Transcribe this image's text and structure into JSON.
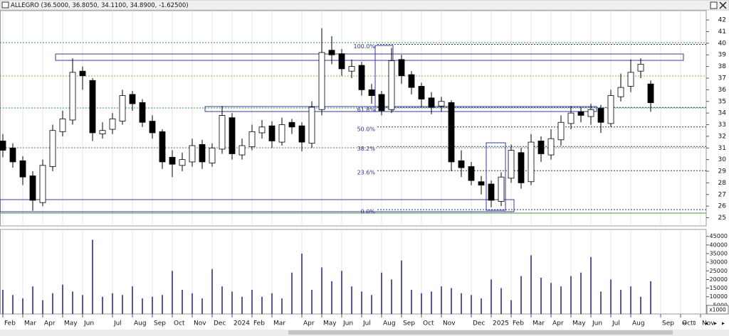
{
  "chart_data": {
    "type": "candlestick",
    "title": "ALLEGRO (36.5000, 36.8050, 34.1100, 34.8900, -1.62500)",
    "categories": [
      "Feb",
      null,
      "Mar",
      null,
      "Apr",
      null,
      "May",
      null,
      "Jun",
      null,
      null,
      "Jul",
      null,
      "Aug",
      null,
      "Sep",
      null,
      "Oct",
      null,
      "Nov",
      null,
      "Dec",
      null,
      "2024",
      null,
      "Feb",
      null,
      "Mar",
      null,
      null,
      "Apr",
      null,
      "May",
      null,
      "Jun",
      null,
      "Jul",
      null,
      "Aug",
      null,
      "Sep",
      null,
      "Oct",
      null,
      "Nov",
      null,
      null,
      "Dec",
      null,
      "2025",
      null,
      "Feb",
      null,
      "Mar",
      null,
      "Apr",
      null,
      "May",
      null,
      "Jun",
      null,
      "Jul",
      null,
      "Aug",
      null,
      null,
      "Sep",
      null,
      "Oct",
      null,
      "Nov"
    ],
    "open": [
      31.6,
      31.0,
      29.9,
      28.6,
      26.3,
      29.4,
      32.4,
      33.4,
      37.6,
      36.8,
      32.2,
      32.6,
      33.3,
      35.6,
      34.9,
      33.3,
      32.4,
      30.2,
      29.5,
      29.8,
      31.3,
      29.7,
      30.9,
      33.6,
      30.4,
      31.1,
      32.3,
      32.9,
      31.5,
      33.2,
      32.9,
      31.4,
      34.3,
      39.4,
      39.1,
      37.6,
      38.1,
      36.0,
      35.6,
      34.3,
      38.6,
      37.3,
      36.3,
      35.3,
      34.6,
      34.9,
      29.9,
      29.4,
      28.1,
      27.9,
      26.4,
      28.4,
      30.6,
      28.1,
      31.6,
      30.4,
      31.7,
      33.1,
      34.1,
      33.7,
      34.4,
      33.1,
      35.4,
      36.3,
      37.6,
      36.5,
      null,
      null,
      null,
      null,
      null
    ],
    "high": [
      32.2,
      31.4,
      30.3,
      29.0,
      30.0,
      33.0,
      34.2,
      38.7,
      38.0,
      37.0,
      33.2,
      34.0,
      36.0,
      35.9,
      35.2,
      33.8,
      32.6,
      30.8,
      30.6,
      31.8,
      31.7,
      31.4,
      34.6,
      34.0,
      31.8,
      33.0,
      33.4,
      33.3,
      33.6,
      33.5,
      33.2,
      35.0,
      41.3,
      40.6,
      39.5,
      38.6,
      38.4,
      36.5,
      35.9,
      39.6,
      39.0,
      37.6,
      36.6,
      35.8,
      35.4,
      35.1,
      30.8,
      29.8,
      28.6,
      28.2,
      28.9,
      31.3,
      31.0,
      32.2,
      32.0,
      32.6,
      33.8,
      34.6,
      34.5,
      34.8,
      34.7,
      36.0,
      37.4,
      38.6,
      38.7,
      36.805,
      null,
      null,
      null,
      null,
      null
    ],
    "low": [
      30.2,
      29.3,
      27.8,
      25.6,
      26.0,
      29.0,
      32.0,
      33.0,
      36.0,
      31.6,
      31.8,
      32.2,
      33.0,
      34.2,
      32.8,
      31.8,
      29.2,
      28.5,
      29.0,
      29.4,
      29.2,
      29.4,
      30.5,
      30.0,
      30.0,
      30.8,
      31.8,
      31.0,
      31.2,
      32.2,
      30.7,
      31.0,
      33.8,
      38.2,
      37.2,
      37.0,
      35.5,
      34.8,
      33.8,
      34.0,
      36.5,
      35.6,
      34.5,
      33.9,
      34.1,
      29.0,
      28.5,
      27.8,
      27.0,
      25.9,
      26.0,
      28.0,
      27.5,
      27.8,
      29.8,
      30.0,
      31.2,
      32.6,
      33.2,
      33.0,
      32.3,
      32.8,
      35.0,
      35.8,
      37.0,
      34.11,
      null,
      null,
      null,
      null,
      null
    ],
    "close": [
      30.8,
      29.8,
      28.5,
      26.5,
      29.5,
      32.5,
      33.5,
      37.5,
      37.2,
      32.3,
      32.5,
      33.5,
      35.5,
      34.8,
      33.2,
      32.3,
      29.8,
      29.6,
      30.0,
      31.2,
      29.8,
      31.0,
      33.8,
      30.5,
      31.2,
      32.4,
      32.8,
      31.6,
      33.0,
      32.8,
      31.5,
      34.5,
      39.2,
      39.0,
      37.8,
      38.0,
      36.0,
      35.5,
      34.2,
      38.5,
      37.2,
      36.2,
      35.2,
      34.5,
      35.0,
      29.8,
      29.3,
      28.2,
      27.8,
      26.5,
      28.5,
      30.8,
      28.0,
      31.5,
      30.5,
      31.8,
      33.2,
      34.0,
      33.8,
      34.3,
      33.2,
      35.5,
      36.2,
      37.5,
      38.2,
      34.89,
      null,
      null,
      null,
      null,
      null
    ],
    "up_color": "#ffffff",
    "down_color": "#000000",
    "ylim": [
      24.3,
      42.8
    ],
    "yticks": [
      25,
      26,
      27,
      28,
      29,
      30,
      31,
      32,
      33,
      34,
      35,
      36,
      37,
      38,
      39,
      40,
      41,
      42
    ],
    "fibonacci": {
      "color": "#2e2e8c",
      "levels": [
        {
          "label": "100.0%",
          "value": 39.9
        },
        {
          "label": "61.8%",
          "value": 34.48
        },
        {
          "label": "50.0%",
          "value": 32.8
        },
        {
          "label": "38.2%",
          "value": 31.12
        },
        {
          "label": "23.6%",
          "value": 29.05
        },
        {
          "label": "0.0%",
          "value": 25.7
        }
      ]
    },
    "volume": {
      "color": "#2b2b9a",
      "values": [
        14000,
        11000,
        9000,
        16000,
        8000,
        12000,
        17000,
        13000,
        11000,
        43000,
        10000,
        12000,
        11000,
        16000,
        9000,
        10000,
        11000,
        25000,
        14000,
        12000,
        9000,
        26000,
        16000,
        13000,
        10000,
        14000,
        10000,
        12000,
        9000,
        24000,
        35000,
        14000,
        27000,
        19000,
        25000,
        16000,
        13000,
        11000,
        24000,
        20000,
        31000,
        14000,
        12000,
        13000,
        16000,
        15000,
        12000,
        11000,
        9000,
        20000,
        15000,
        8000,
        22000,
        34000,
        21000,
        18000,
        16000,
        22000,
        24000,
        33000,
        13000,
        20000,
        14000,
        16000,
        10000,
        19000,
        null,
        null,
        null,
        null,
        null
      ],
      "ylim": [
        0,
        49000
      ],
      "yticks": [
        5000,
        10000,
        15000,
        20000,
        25000,
        30000,
        35000,
        40000,
        45000
      ],
      "unit_label": "x1000"
    }
  }
}
